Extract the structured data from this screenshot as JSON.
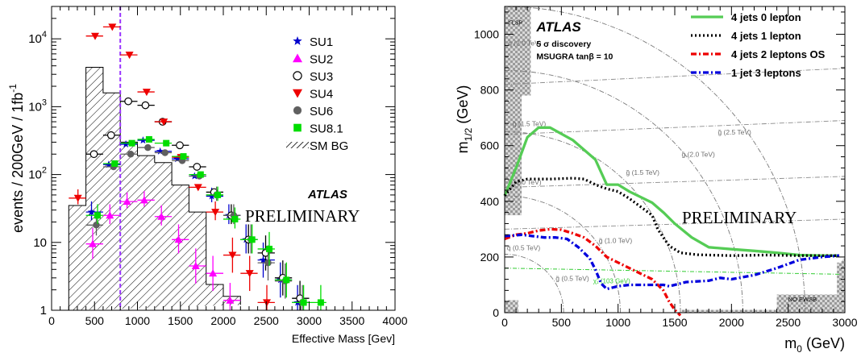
{
  "chart_data": [
    {
      "type": "histogram",
      "xlabel": "Effective Mass [Gev]",
      "ylabel": "events / 200GeV / 1fb",
      "ylabel_sup": "-1",
      "xlim": [
        0,
        4000
      ],
      "ylim": [
        1,
        30000
      ],
      "yscale": "log",
      "xticks": [
        "0",
        "500",
        "1000",
        "1500",
        "2000",
        "2500",
        "3000",
        "3500",
        "4000"
      ],
      "yticks": [
        {
          "value": 1,
          "base": "1",
          "sup": ""
        },
        {
          "value": 10,
          "base": "10",
          "sup": ""
        },
        {
          "value": 100,
          "base": "10",
          "sup": "2"
        },
        {
          "value": 1000,
          "base": "10",
          "sup": "3"
        },
        {
          "value": 10000,
          "base": "10",
          "sup": "4"
        }
      ],
      "atlas_label": "ATLAS",
      "preliminary_label": "PRELIMINARY",
      "cut_line_x": 800,
      "cut_line_color": "#9933ff",
      "sm_bg": {
        "name": "SM BG",
        "edges": [
          200,
          400,
          600,
          800,
          1000,
          1200,
          1400,
          1600,
          1800,
          2000,
          2200
        ],
        "values": [
          35,
          3800,
          1600,
          300,
          190,
          150,
          70,
          28,
          2.4,
          1.6,
          1.2
        ]
      },
      "legend_position": "top-right",
      "series": [
        {
          "name": "SU1",
          "marker": "star",
          "color": "#0000cc",
          "points": [
            [
              500,
              28
            ],
            [
              700,
              140
            ],
            [
              900,
              280
            ],
            [
              1100,
              320
            ],
            [
              1300,
              220
            ],
            [
              1500,
              170
            ],
            [
              1700,
              95
            ],
            [
              1900,
              48
            ],
            [
              2100,
              25
            ],
            [
              2300,
              11
            ],
            [
              2500,
              5.5
            ],
            [
              2700,
              2.8
            ],
            [
              2900,
              1.3
            ]
          ]
        },
        {
          "name": "SU2",
          "marker": "triangle-up",
          "color": "#ff00ff",
          "points": [
            [
              500,
              9.5
            ],
            [
              700,
              25
            ],
            [
              900,
              40
            ],
            [
              1100,
              42
            ],
            [
              1300,
              24
            ],
            [
              1500,
              11
            ],
            [
              1700,
              4.5
            ],
            [
              1900,
              3.5
            ],
            [
              2100,
              1.4
            ]
          ]
        },
        {
          "name": "SU3",
          "marker": "circle-open",
          "color": "#000000",
          "points": [
            [
              500,
              200
            ],
            [
              700,
              380
            ],
            [
              900,
              1200
            ],
            [
              1100,
              1050
            ],
            [
              1300,
              600
            ],
            [
              1500,
              270
            ],
            [
              1700,
              130
            ],
            [
              1900,
              55
            ],
            [
              2100,
              25
            ],
            [
              2300,
              11
            ],
            [
              2500,
              7
            ],
            [
              2700,
              3
            ],
            [
              2900,
              1.5
            ]
          ]
        },
        {
          "name": "SU4",
          "marker": "triangle-down",
          "color": "#ee0000",
          "points": [
            [
              300,
              45
            ],
            [
              500,
              11000
            ],
            [
              700,
              15000
            ],
            [
              900,
              5800
            ],
            [
              1100,
              1650
            ],
            [
              1300,
              600
            ],
            [
              1500,
              180
            ],
            [
              1700,
              65
            ],
            [
              1900,
              28
            ],
            [
              2100,
              6.5
            ],
            [
              2300,
              3.5
            ],
            [
              2500,
              1.3
            ]
          ]
        },
        {
          "name": "SU6",
          "marker": "circle",
          "color": "#606060",
          "points": [
            [
              500,
              18
            ],
            [
              700,
              130
            ],
            [
              900,
              200
            ],
            [
              1100,
              250
            ],
            [
              1300,
              210
            ],
            [
              1500,
              160
            ],
            [
              1700,
              95
            ],
            [
              1900,
              50
            ],
            [
              2100,
              25
            ],
            [
              2300,
              11
            ],
            [
              2500,
              5
            ],
            [
              2700,
              2.7
            ],
            [
              2900,
              1.3
            ]
          ]
        },
        {
          "name": "SU8.1",
          "marker": "square",
          "color": "#00dd00",
          "points": [
            [
              500,
              25
            ],
            [
              700,
              145
            ],
            [
              900,
              290
            ],
            [
              1100,
              330
            ],
            [
              1300,
              290
            ],
            [
              1500,
              185
            ],
            [
              1700,
              100
            ],
            [
              1900,
              50
            ],
            [
              2100,
              22
            ],
            [
              2300,
              11
            ],
            [
              2500,
              8
            ],
            [
              2700,
              2.8
            ],
            [
              2900,
              1.3
            ],
            [
              3100,
              1.3
            ]
          ]
        }
      ]
    },
    {
      "type": "line",
      "xlabel": "m",
      "xlabel_sub": "0",
      "xlabel_unit": " (GeV)",
      "ylabel": "m",
      "ylabel_sub": "1/2",
      "ylabel_unit": " (GeV)",
      "xlim": [
        0,
        3000
      ],
      "ylim": [
        0,
        1100
      ],
      "xticks": [
        "0",
        "500",
        "1000",
        "1500",
        "2000",
        "2500",
        "3000"
      ],
      "yticks": [
        "0",
        "200",
        "400",
        "600",
        "800",
        "1000"
      ],
      "atlas_label": "ATLAS",
      "subtitle_line1": "5 σ discovery",
      "subtitle_line2": "MSUGRA tanβ = 10",
      "preliminary_label": "PRELIMINARY",
      "legend_position": "top-right",
      "region_labels": {
        "lsp": "τ̃ LSP",
        "no_ewsb": "NO EWSB",
        "chi": "χ̃₁ (103 GeV)"
      },
      "squark_labels": [
        "q̃ (2.0 TeV)",
        "q̃ (1.5 TeV)",
        "q̃ (1.0 TeV)",
        "q̃ (0.5 TeV)"
      ],
      "gluino_labels": [
        "g̃ (2.5 TeV)",
        "g̃ (2.0 TeV)",
        "g̃ (1.5 TeV)",
        "g̃ (1.0 TeV)",
        "g̃ (0.5 TeV)"
      ],
      "series": [
        {
          "name": "4 jets 0 lepton",
          "color": "#55cc55",
          "style": "solid",
          "points": [
            [
              0,
              420
            ],
            [
              100,
              520
            ],
            [
              200,
              630
            ],
            [
              300,
              665
            ],
            [
              400,
              665
            ],
            [
              600,
              620
            ],
            [
              800,
              550
            ],
            [
              900,
              460
            ],
            [
              1000,
              460
            ],
            [
              1100,
              435
            ],
            [
              1300,
              395
            ],
            [
              1400,
              360
            ],
            [
              1500,
              320
            ],
            [
              1650,
              270
            ],
            [
              1800,
              235
            ],
            [
              2000,
              228
            ],
            [
              2200,
              222
            ],
            [
              2400,
              215
            ],
            [
              2600,
              207
            ],
            [
              2800,
              205
            ],
            [
              2950,
              205
            ]
          ]
        },
        {
          "name": "4 jets 1 lepton",
          "color": "#000000",
          "style": "dot",
          "points": [
            [
              0,
              420
            ],
            [
              100,
              470
            ],
            [
              200,
              480
            ],
            [
              400,
              480
            ],
            [
              600,
              483
            ],
            [
              700,
              480
            ],
            [
              800,
              460
            ],
            [
              900,
              445
            ],
            [
              1000,
              435
            ],
            [
              1100,
              410
            ],
            [
              1200,
              380
            ],
            [
              1300,
              350
            ],
            [
              1350,
              300
            ],
            [
              1450,
              240
            ],
            [
              1550,
              215
            ],
            [
              1700,
              208
            ],
            [
              2000,
              205
            ],
            [
              2300,
              207
            ],
            [
              2600,
              205
            ],
            [
              2950,
              205
            ]
          ]
        },
        {
          "name": "4 jets 2 leptons OS",
          "color": "#ee0000",
          "style": "dashdot",
          "points": [
            [
              0,
              265
            ],
            [
              100,
              280
            ],
            [
              200,
              285
            ],
            [
              300,
              295
            ],
            [
              400,
              300
            ],
            [
              500,
              298
            ],
            [
              600,
              285
            ],
            [
              700,
              270
            ],
            [
              800,
              240
            ],
            [
              900,
              200
            ],
            [
              1000,
              180
            ],
            [
              1100,
              160
            ],
            [
              1200,
              140
            ],
            [
              1300,
              120
            ],
            [
              1400,
              80
            ],
            [
              1450,
              40
            ],
            [
              1500,
              10
            ],
            [
              1550,
              -10
            ]
          ]
        },
        {
          "name": "1 jet 3 leptons",
          "color": "#0000dd",
          "style": "dashdot",
          "points": [
            [
              0,
              275
            ],
            [
              150,
              280
            ],
            [
              350,
              270
            ],
            [
              450,
              270
            ],
            [
              550,
              265
            ],
            [
              650,
              235
            ],
            [
              750,
              195
            ],
            [
              800,
              155
            ],
            [
              850,
              105
            ],
            [
              900,
              85
            ],
            [
              1000,
              95
            ],
            [
              1100,
              100
            ],
            [
              1300,
              100
            ],
            [
              1400,
              100
            ],
            [
              1450,
              95
            ],
            [
              1500,
              100
            ],
            [
              1600,
              110
            ],
            [
              1800,
              115
            ],
            [
              1900,
              125
            ],
            [
              2000,
              120
            ],
            [
              2200,
              135
            ],
            [
              2400,
              160
            ],
            [
              2600,
              190
            ],
            [
              2800,
              200
            ],
            [
              2950,
              205
            ]
          ]
        }
      ]
    }
  ]
}
